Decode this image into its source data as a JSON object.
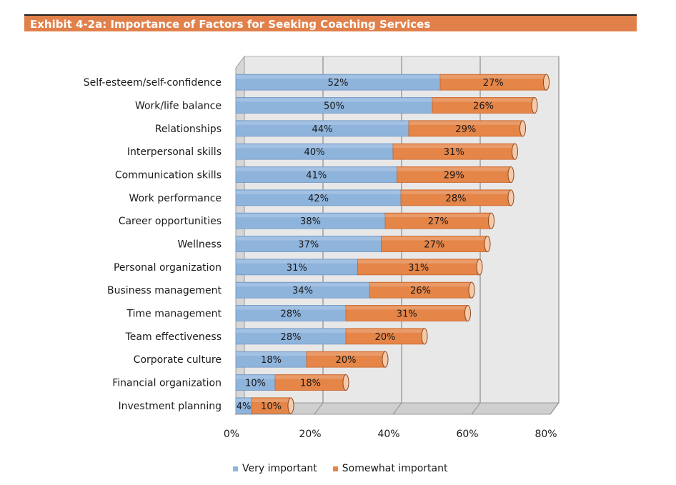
{
  "exhibit": {
    "title": "Exhibit 4-2a: Importance of Factors for Seeking Coaching Services"
  },
  "chart_data": {
    "type": "bar",
    "orientation": "horizontal",
    "stacked": true,
    "title": "Exhibit 4-2a: Importance of Factors for Seeking Coaching Services",
    "categories": [
      "Self-esteem/self-confidence",
      "Work/life balance",
      "Relationships",
      "Interpersonal skills",
      "Communication skills",
      "Work performance",
      "Career opportunities",
      "Wellness",
      "Personal organization",
      "Business management",
      "Time management",
      "Team effectiveness",
      "Corporate culture",
      "Financial organization",
      "Investment planning"
    ],
    "series": [
      {
        "name": "Very important",
        "color": "#8fb4dc",
        "values": [
          52,
          50,
          44,
          40,
          41,
          42,
          38,
          37,
          31,
          34,
          28,
          28,
          18,
          10,
          4
        ]
      },
      {
        "name": "Somewhat important",
        "color": "#e58548",
        "values": [
          27,
          26,
          29,
          31,
          29,
          28,
          27,
          27,
          31,
          26,
          31,
          20,
          20,
          18,
          10
        ]
      }
    ],
    "xlim": [
      0,
      80
    ],
    "xticks": [
      0,
      20,
      40,
      60,
      80
    ],
    "xtick_labels": [
      "0%",
      "20%",
      "40%",
      "60%",
      "80%"
    ],
    "value_suffix": "%",
    "legend_position": "bottom",
    "grid": true
  }
}
